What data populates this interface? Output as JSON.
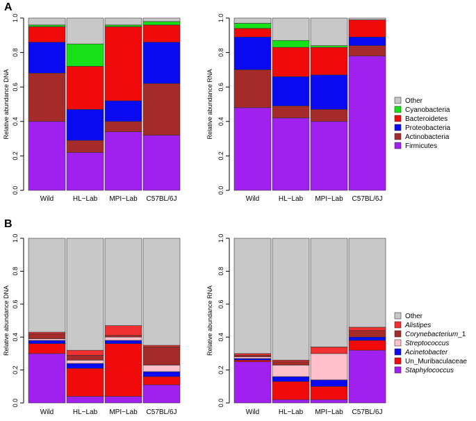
{
  "colors": {
    "Other": "#c8c8c8",
    "Cyanobacteria": "#18e018",
    "Bacteroidetes": "#f00a0a",
    "Proteobacteria": "#0a0af0",
    "Actinobacteria": "#a52a2a",
    "Firmicutes": "#a020f0",
    "Alistipes": "#f03030",
    "Corynebacterium_1": "#a52a2a",
    "Streptococcus": "#ffc0cb",
    "Acinetobacter": "#0a0af0",
    "Un_Muribaculaceae": "#f00a0a",
    "Staphylococcus": "#a020f0"
  },
  "panels": {
    "A": {
      "letter": "A"
    },
    "B": {
      "letter": "B"
    }
  },
  "chart_data": [
    {
      "id": "A-DNA",
      "type": "bar",
      "stacked": true,
      "categories": [
        "Wild",
        "HL−Lab",
        "MPI−Lab",
        "C57BL/6J"
      ],
      "ylabel": "Relative abundance DNA",
      "ylim": [
        0,
        1
      ],
      "yticks": [
        "0.0",
        "0.2",
        "0.4",
        "0.6",
        "0.8",
        "1.0"
      ],
      "series": [
        {
          "name": "Firmicutes",
          "values": [
            0.4,
            0.22,
            0.34,
            0.32
          ]
        },
        {
          "name": "Actinobacteria",
          "values": [
            0.28,
            0.07,
            0.06,
            0.3
          ]
        },
        {
          "name": "Proteobacteria",
          "values": [
            0.18,
            0.18,
            0.12,
            0.24
          ]
        },
        {
          "name": "Bacteroidetes",
          "values": [
            0.09,
            0.25,
            0.43,
            0.1
          ]
        },
        {
          "name": "Cyanobacteria",
          "values": [
            0.01,
            0.13,
            0.01,
            0.02
          ]
        },
        {
          "name": "Other",
          "values": [
            0.04,
            0.15,
            0.04,
            0.02
          ]
        }
      ]
    },
    {
      "id": "A-RNA",
      "type": "bar",
      "stacked": true,
      "categories": [
        "Wild",
        "HL−Lab",
        "MPI−Lab",
        "C57BL/6J"
      ],
      "ylabel": "Relative abundance RNA",
      "ylim": [
        0,
        1
      ],
      "yticks": [
        "0.0",
        "0.2",
        "0.4",
        "0.6",
        "0.8",
        "1.0"
      ],
      "series": [
        {
          "name": "Firmicutes",
          "values": [
            0.48,
            0.42,
            0.4,
            0.78
          ]
        },
        {
          "name": "Actinobacteria",
          "values": [
            0.22,
            0.07,
            0.07,
            0.06
          ]
        },
        {
          "name": "Proteobacteria",
          "values": [
            0.19,
            0.17,
            0.2,
            0.05
          ]
        },
        {
          "name": "Bacteroidetes",
          "values": [
            0.05,
            0.17,
            0.16,
            0.1
          ]
        },
        {
          "name": "Cyanobacteria",
          "values": [
            0.03,
            0.04,
            0.01,
            0.0
          ]
        },
        {
          "name": "Other",
          "values": [
            0.03,
            0.13,
            0.16,
            0.01
          ]
        }
      ],
      "legend": {
        "placement": "right",
        "entries": [
          {
            "name": "Other",
            "label": "Other",
            "italic": false
          },
          {
            "name": "Cyanobacteria",
            "label": "Cyanobacteria",
            "italic": false
          },
          {
            "name": "Bacteroidetes",
            "label": "Bacteroidetes",
            "italic": false
          },
          {
            "name": "Proteobacteria",
            "label": "Proteobacteria",
            "italic": false
          },
          {
            "name": "Actinobacteria",
            "label": "Actinobacteria",
            "italic": false
          },
          {
            "name": "Firmicutes",
            "label": "Firmicutes",
            "italic": false
          }
        ]
      }
    },
    {
      "id": "B-DNA",
      "type": "bar",
      "stacked": true,
      "categories": [
        "Wild",
        "HL−Lab",
        "MPI−Lab",
        "C57BL/6J"
      ],
      "ylabel": "Relative abundance DNA",
      "ylim": [
        0,
        1
      ],
      "yticks": [
        "0.0",
        "0.2",
        "0.4",
        "0.6",
        "0.8",
        "1.0"
      ],
      "series": [
        {
          "name": "Staphylococcus",
          "values": [
            0.3,
            0.04,
            0.04,
            0.11
          ]
        },
        {
          "name": "Un_Muribaculaceae",
          "values": [
            0.06,
            0.17,
            0.32,
            0.05
          ]
        },
        {
          "name": "Acinetobacter",
          "values": [
            0.02,
            0.03,
            0.02,
            0.03
          ]
        },
        {
          "name": "Streptococcus",
          "values": [
            0.01,
            0.02,
            0.02,
            0.04
          ]
        },
        {
          "name": "Corynebacterium_1",
          "values": [
            0.03,
            0.03,
            0.01,
            0.11
          ]
        },
        {
          "name": "Alistipes",
          "values": [
            0.01,
            0.03,
            0.06,
            0.01
          ]
        },
        {
          "name": "Other",
          "values": [
            0.57,
            0.68,
            0.53,
            0.65
          ]
        }
      ]
    },
    {
      "id": "B-RNA",
      "type": "bar",
      "stacked": true,
      "categories": [
        "Wild",
        "HL−Lab",
        "MPI−Lab",
        "C57BL/6J"
      ],
      "ylabel": "Relative abundance RNA",
      "ylim": [
        0,
        1
      ],
      "yticks": [
        "0.0",
        "0.2",
        "0.4",
        "0.6",
        "0.8",
        "1.0"
      ],
      "series": [
        {
          "name": "Staphylococcus",
          "values": [
            0.25,
            0.02,
            0.02,
            0.32
          ]
        },
        {
          "name": "Un_Muribaculaceae",
          "values": [
            0.01,
            0.11,
            0.08,
            0.06
          ]
        },
        {
          "name": "Acinetobacter",
          "values": [
            0.01,
            0.03,
            0.04,
            0.02
          ]
        },
        {
          "name": "Streptococcus",
          "values": [
            0.01,
            0.07,
            0.16,
            0.0
          ]
        },
        {
          "name": "Corynebacterium_1",
          "values": [
            0.01,
            0.02,
            0.0,
            0.04
          ]
        },
        {
          "name": "Alistipes",
          "values": [
            0.01,
            0.01,
            0.04,
            0.02
          ]
        },
        {
          "name": "Other",
          "values": [
            0.7,
            0.74,
            0.66,
            0.54
          ]
        }
      ],
      "legend": {
        "placement": "right",
        "entries": [
          {
            "name": "Other",
            "label": "Other",
            "italic": false
          },
          {
            "name": "Alistipes",
            "label": "Alistipes",
            "italic": true
          },
          {
            "name": "Corynebacterium_1",
            "label": "Corynebacterium_1",
            "italic": true,
            "italic_part": "Corynebacterium",
            "suffix": "_1"
          },
          {
            "name": "Streptococcus",
            "label": "Streptococcus",
            "italic": true
          },
          {
            "name": "Acinetobacter",
            "label": "Acinetobacter",
            "italic": true
          },
          {
            "name": "Un_Muribaculaceae",
            "label": "Un_Muribaculaceae",
            "italic": false
          },
          {
            "name": "Staphylococcus",
            "label": "Staphylococcus",
            "italic": true
          }
        ]
      }
    }
  ]
}
